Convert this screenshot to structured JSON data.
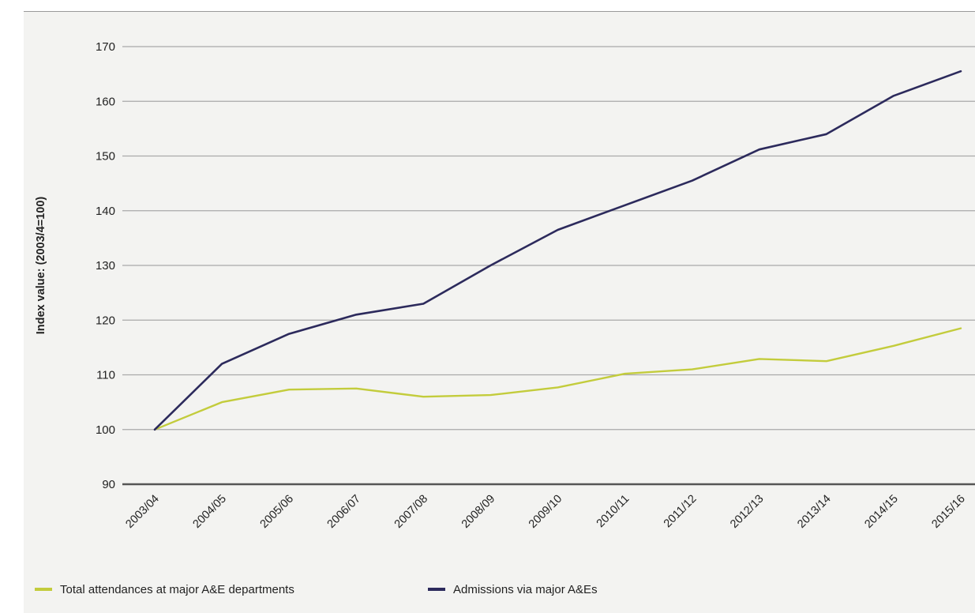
{
  "chart_data": {
    "type": "line",
    "title": "",
    "xlabel": "",
    "ylabel": "Index value: (2003/4=100)",
    "ylim": [
      90,
      170
    ],
    "yticks": [
      90,
      100,
      110,
      120,
      130,
      140,
      150,
      160,
      170
    ],
    "grid": true,
    "legend_position": "bottom-left",
    "categories": [
      "2003/04",
      "2004/05",
      "2005/06",
      "2006/07",
      "2007/08",
      "2008/09",
      "2009/10",
      "2010/11",
      "2011/12",
      "2012/13",
      "2013/14",
      "2014/15",
      "2015/16"
    ],
    "series": [
      {
        "name": "Total attendances at major A&E departments",
        "color": "#c3cc3c",
        "values": [
          100,
          105,
          107.3,
          107.5,
          106,
          106.3,
          107.7,
          110.2,
          111,
          112.9,
          112.5,
          115.3,
          118.5
        ]
      },
      {
        "name": "Admissions via major A&Es",
        "color": "#2c2a5c",
        "values": [
          100,
          112,
          117.5,
          121,
          123,
          130,
          136.5,
          141,
          145.5,
          151.2,
          154,
          161,
          165.5
        ]
      }
    ]
  }
}
